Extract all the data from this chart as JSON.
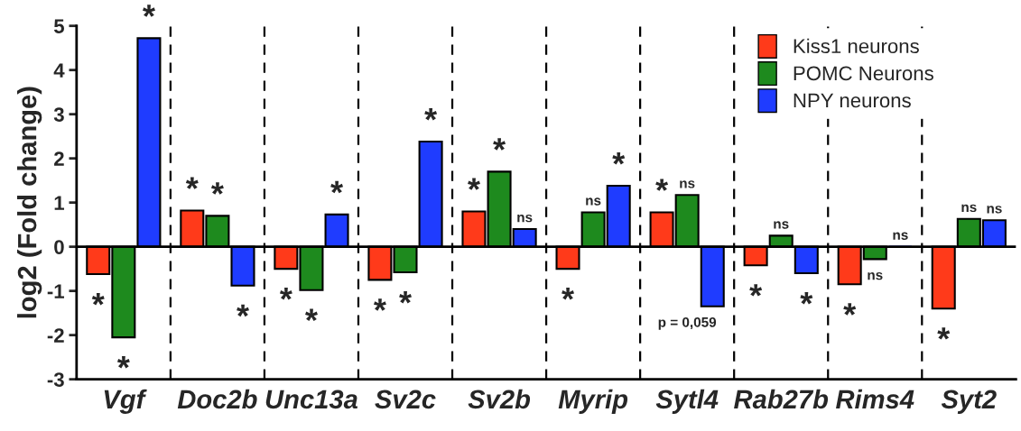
{
  "chart_data": {
    "type": "bar",
    "ylabel": "log2 (Fold change)",
    "categories": [
      "Vgf",
      "Doc2b",
      "Unc13a",
      "Sv2c",
      "Sv2b",
      "Myrip",
      "Sytl4",
      "Rab27b",
      "Rims4",
      "Syt2"
    ],
    "series": [
      {
        "name": "Kiss1 neurons",
        "color": "#ff3a1a",
        "values": [
          -0.62,
          0.82,
          -0.5,
          -0.75,
          0.8,
          -0.5,
          0.78,
          -0.42,
          -0.85,
          -1.4
        ],
        "value_labels": [
          "*",
          "*",
          "*",
          "*",
          "*",
          "*",
          "*",
          "*",
          "*",
          "*"
        ]
      },
      {
        "name": "POMC Neurons",
        "color": "#1e8a1e",
        "values": [
          -2.05,
          0.7,
          -0.98,
          -0.58,
          1.7,
          0.78,
          1.17,
          0.25,
          -0.28,
          0.63
        ],
        "value_labels": [
          "*",
          "*",
          "*",
          "*",
          "*",
          "ns",
          "ns",
          "ns",
          "ns",
          "ns"
        ]
      },
      {
        "name": "NPY neurons",
        "color": "#1f3cff",
        "values": [
          4.72,
          -0.88,
          0.73,
          2.38,
          0.4,
          1.38,
          -1.35,
          -0.6,
          0.0,
          0.6
        ],
        "value_labels": [
          "*",
          "*",
          "*",
          "*",
          "ns",
          "*",
          null,
          "*",
          "ns",
          "ns"
        ]
      }
    ],
    "ylim": [
      -3,
      5
    ],
    "yticks": [
      -3,
      -2,
      -1,
      0,
      1,
      2,
      3,
      4,
      5
    ],
    "grid": "x",
    "legend": "top right",
    "annotations": [
      "p = 0,059"
    ]
  }
}
